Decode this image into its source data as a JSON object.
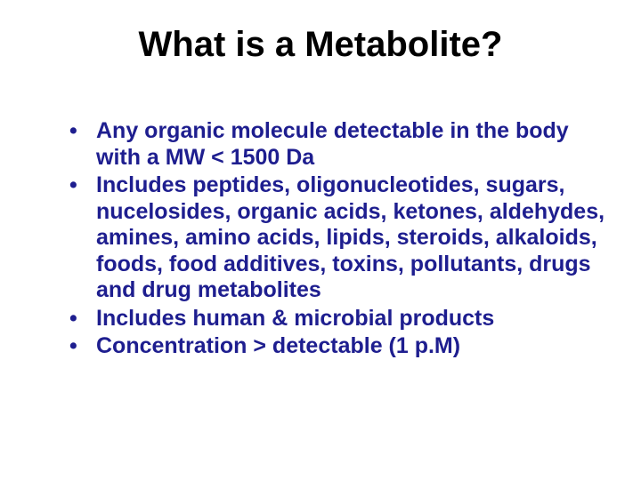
{
  "slide": {
    "title": "What is a Metabolite?",
    "title_color": "#000000",
    "title_fontsize": 40,
    "body_color": "#1e1e8f",
    "body_fontsize": 25,
    "background_color": "#ffffff",
    "bullets": [
      "Any organic molecule detectable in the body with a MW < 1500 Da",
      "Includes peptides, oligonucleotides, sugars, nucelosides, organic acids, ketones, aldehydes, amines, amino acids, lipids, steroids, alkaloids, foods, food additives, toxins, pollutants, drugs and drug metabolites",
      "Includes human & microbial products",
      "Concentration > detectable (1 p.M)"
    ]
  }
}
